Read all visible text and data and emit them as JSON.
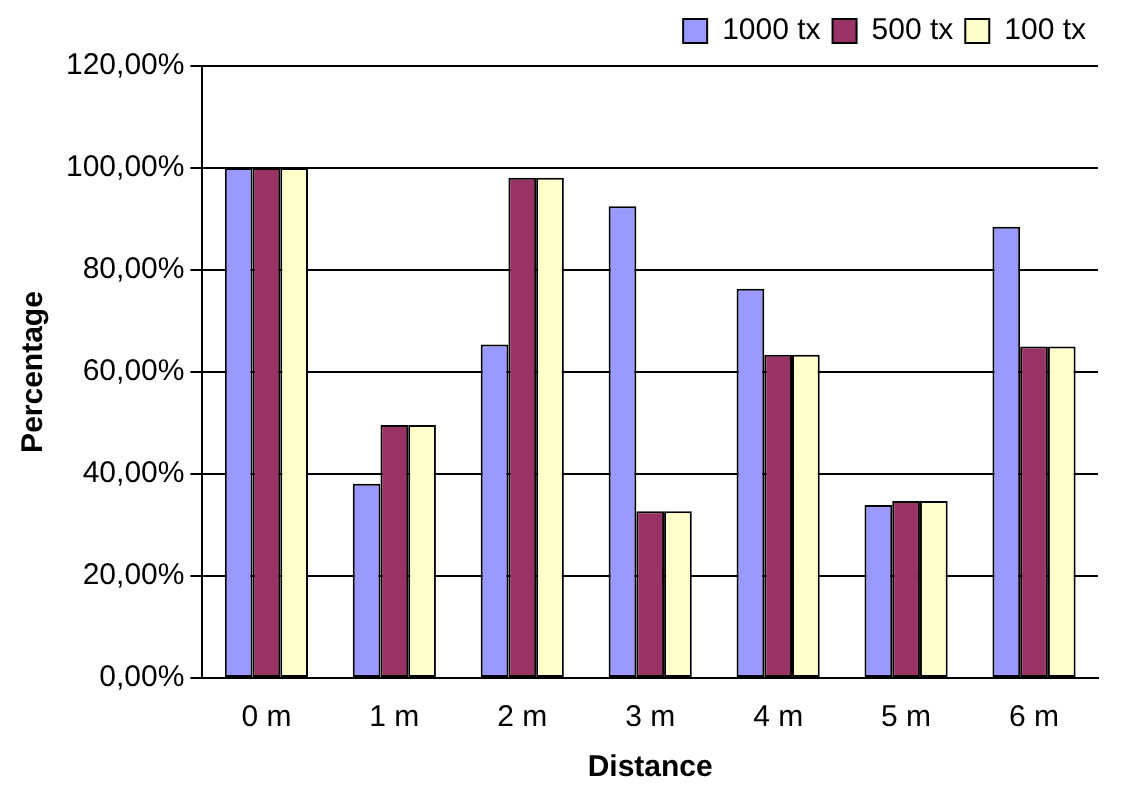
{
  "chart_data": {
    "type": "bar",
    "xlabel": "Distance",
    "ylabel": "Percentage",
    "categories": [
      "0 m",
      "1 m",
      "2 m",
      "3 m",
      "4 m",
      "5 m",
      "6 m"
    ],
    "series": [
      {
        "name": "1000 tx",
        "color": "#9999ff",
        "values": [
          100,
          38.1,
          65.4,
          92.5,
          76.3,
          33.9,
          88.5
        ]
      },
      {
        "name": "500 tx",
        "color": "#993366",
        "values": [
          100,
          49.6,
          98.1,
          32.7,
          63.4,
          34.7,
          65.0
        ]
      },
      {
        "name": "100 tx",
        "color": "#ffffcc",
        "values": [
          100,
          49.6,
          98.1,
          32.7,
          63.4,
          34.7,
          65.0
        ]
      }
    ],
    "ylim": [
      0,
      120
    ],
    "yticks": [
      {
        "value": 0,
        "label": "0,00%"
      },
      {
        "value": 20,
        "label": "20,00%"
      },
      {
        "value": 40,
        "label": "40,00%"
      },
      {
        "value": 60,
        "label": "60,00%"
      },
      {
        "value": 80,
        "label": "80,00%"
      },
      {
        "value": 100,
        "label": "100,00%"
      },
      {
        "value": 120,
        "label": "120,00%"
      }
    ],
    "grid": "y",
    "legend": "top right"
  }
}
